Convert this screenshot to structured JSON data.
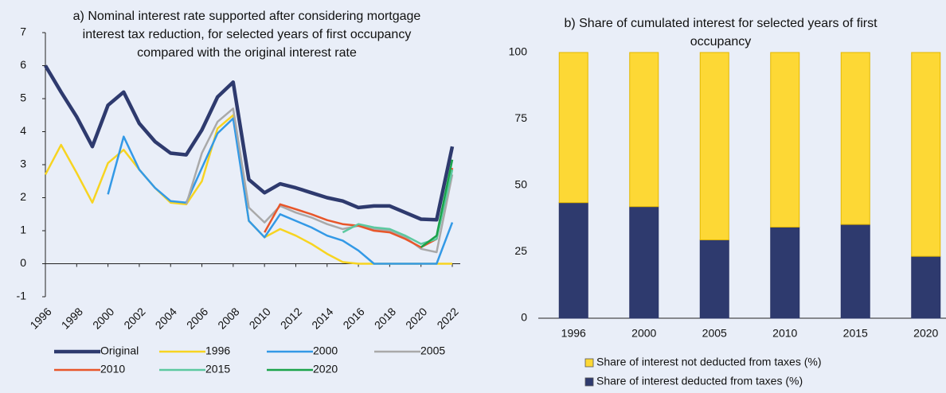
{
  "chart_data": [
    {
      "type": "line",
      "title": "a) Nominal interest rate supported after considering mortgage interest tax reduction, for selected years of first occupancy compared with the original interest rate",
      "x": [
        1996,
        1997,
        1998,
        1999,
        2000,
        2001,
        2002,
        2003,
        2004,
        2005,
        2006,
        2007,
        2008,
        2009,
        2010,
        2011,
        2012,
        2013,
        2014,
        2015,
        2016,
        2017,
        2018,
        2019,
        2020,
        2021,
        2022
      ],
      "xlim": [
        1996,
        2022
      ],
      "xticks": [
        1996,
        1998,
        2000,
        2002,
        2004,
        2006,
        2008,
        2010,
        2012,
        2014,
        2016,
        2018,
        2020,
        2022
      ],
      "ylim": [
        -1,
        7
      ],
      "yticks": [
        -1,
        0,
        1,
        2,
        3,
        4,
        5,
        6,
        7
      ],
      "series": [
        {
          "name": "Original",
          "color": "#2e3a6e",
          "values": [
            6.0,
            5.2,
            4.45,
            3.55,
            4.8,
            5.2,
            4.25,
            3.7,
            3.35,
            3.3,
            4.05,
            5.05,
            5.5,
            2.55,
            2.15,
            2.42,
            2.3,
            2.15,
            2.0,
            1.9,
            1.7,
            1.75,
            1.75,
            1.55,
            1.35,
            1.33,
            3.55
          ]
        },
        {
          "name": "1996",
          "color": "#f7d421",
          "values": [
            2.7,
            3.6,
            2.75,
            1.85,
            3.05,
            3.45,
            2.85,
            2.3,
            1.85,
            1.8,
            2.5,
            4.1,
            4.5,
            1.3,
            0.8,
            1.05,
            0.85,
            0.6,
            0.3,
            0.05,
            0,
            0,
            0,
            0,
            0,
            0,
            0
          ]
        },
        {
          "name": "2000",
          "color": "#3399e6",
          "values": [
            null,
            null,
            null,
            null,
            2.1,
            3.85,
            2.85,
            2.3,
            1.9,
            1.85,
            2.9,
            3.95,
            4.4,
            1.3,
            0.8,
            1.5,
            1.3,
            1.1,
            0.85,
            0.7,
            0.4,
            0,
            0,
            0,
            0,
            0,
            1.25
          ]
        },
        {
          "name": "2005",
          "color": "#a9a9a9",
          "values": [
            null,
            null,
            null,
            null,
            null,
            null,
            null,
            null,
            null,
            1.8,
            3.35,
            4.3,
            4.7,
            1.7,
            1.25,
            1.75,
            1.55,
            1.4,
            1.2,
            1.05,
            1.15,
            1.05,
            1.0,
            0.8,
            0.45,
            0.35,
            2.7
          ]
        },
        {
          "name": "2010",
          "color": "#e8562a",
          "values": [
            null,
            null,
            null,
            null,
            null,
            null,
            null,
            null,
            null,
            null,
            null,
            null,
            null,
            null,
            0.95,
            1.8,
            1.65,
            1.5,
            1.32,
            1.2,
            1.15,
            1.0,
            0.95,
            0.75,
            0.5,
            0.75,
            2.9
          ]
        },
        {
          "name": "2015",
          "color": "#5cc9a0",
          "values": [
            null,
            null,
            null,
            null,
            null,
            null,
            null,
            null,
            null,
            null,
            null,
            null,
            null,
            null,
            null,
            null,
            null,
            null,
            null,
            0.95,
            1.2,
            1.1,
            1.05,
            0.85,
            0.6,
            0.75,
            2.85
          ]
        },
        {
          "name": "2020",
          "color": "#1aa34a",
          "values": [
            null,
            null,
            null,
            null,
            null,
            null,
            null,
            null,
            null,
            null,
            null,
            null,
            null,
            null,
            null,
            null,
            null,
            null,
            null,
            null,
            null,
            null,
            null,
            null,
            0.5,
            0.85,
            3.15
          ]
        }
      ]
    },
    {
      "type": "stacked_bar",
      "title": "b) Share of cumulated interest for selected years of first occupancy",
      "categories": [
        "1996",
        "2000",
        "2005",
        "2010",
        "2015",
        "2020"
      ],
      "ylim": [
        0,
        100
      ],
      "yticks": [
        0,
        25,
        50,
        75,
        100
      ],
      "series": [
        {
          "name": "Share of interest deducted from taxes (%)",
          "color": "#2e3a6e",
          "values": [
            43.5,
            42,
            29.5,
            34.3,
            35.3,
            23.3
          ]
        },
        {
          "name": "Share of interest not deducted from taxes (%)",
          "color": "#fdd835",
          "values": [
            56.5,
            58,
            70.5,
            65.7,
            64.7,
            76.7
          ]
        }
      ]
    }
  ]
}
